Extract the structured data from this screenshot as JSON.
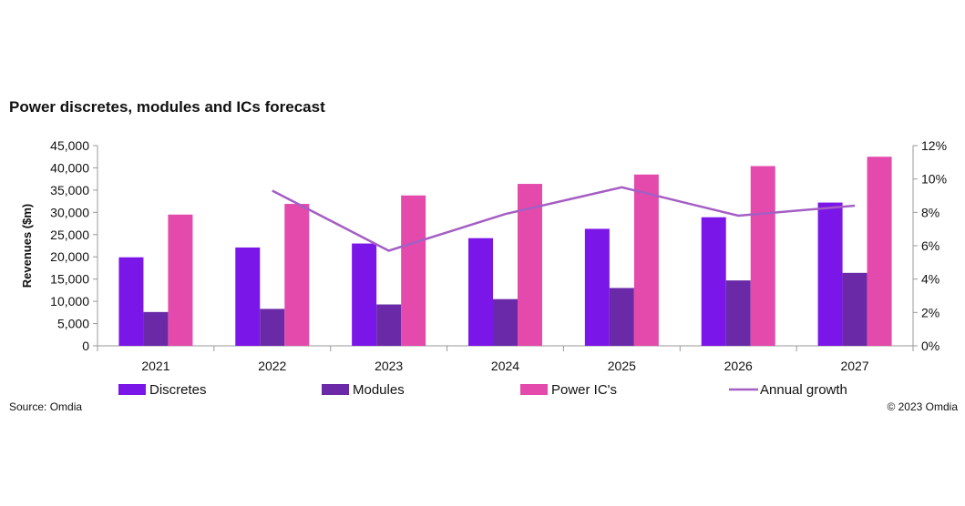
{
  "footer": {
    "source": "Source: Omdia",
    "copyright": "© 2023 Omdia"
  },
  "chart_data": {
    "type": "bar",
    "title": "Power discretes, modules and ICs forecast",
    "ylabel": "Revenues ($m)",
    "y2label": "",
    "categories": [
      "2021",
      "2022",
      "2023",
      "2024",
      "2025",
      "2026",
      "2027"
    ],
    "ylim": [
      0,
      45000
    ],
    "y2lim": [
      0,
      0.12
    ],
    "yticks": [
      "0",
      "5,000",
      "10,000",
      "15,000",
      "20,000",
      "25,000",
      "30,000",
      "35,000",
      "40,000",
      "45,000"
    ],
    "y2ticks": [
      "0%",
      "2%",
      "4%",
      "6%",
      "8%",
      "10%",
      "12%"
    ],
    "series": [
      {
        "name": "Discretes",
        "type": "bar",
        "color": "#7b16e8",
        "values": [
          19900,
          22100,
          23000,
          24200,
          26300,
          28900,
          32200
        ]
      },
      {
        "name": "Modules",
        "type": "bar",
        "color": "#6a2aa8",
        "values": [
          7600,
          8300,
          9300,
          10500,
          13000,
          14700,
          16400
        ]
      },
      {
        "name": "Power IC's",
        "type": "bar",
        "color": "#e34aab",
        "values": [
          29500,
          31900,
          33800,
          36400,
          38500,
          40400,
          42500
        ]
      },
      {
        "name": "Annual growth",
        "type": "line",
        "axis": "right",
        "color": "#a45ec4",
        "x": [
          "2022",
          "2023",
          "2024",
          "2025",
          "2026",
          "2027"
        ],
        "values": [
          0.093,
          0.057,
          0.079,
          0.095,
          0.078,
          0.084
        ]
      }
    ],
    "grid": false,
    "legend": "bottom"
  }
}
